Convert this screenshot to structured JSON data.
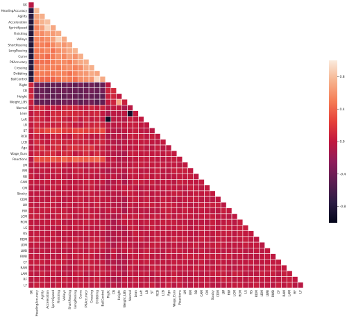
{
  "chart_data": {
    "type": "heatmap",
    "title": "",
    "xlabel": "",
    "ylabel": "",
    "mask": "upper-triangle",
    "labels": [
      "GK",
      "HeadingAccuracy",
      "Agility",
      "Acceleration",
      "SprintSpeed",
      "Finishing",
      "Volleys",
      "ShortPassing",
      "LongPassing",
      "Curve",
      "PKAccuracy",
      "Crossing",
      "Dribbling",
      "BallControl",
      "Right",
      "CB",
      "Height",
      "Weight_LBS",
      "Normal",
      "Lean",
      "Left",
      "LB",
      "ST",
      "RCB",
      "LCB",
      "Age",
      "Wage_Euro",
      "Reactions",
      "LM",
      "RM",
      "RB",
      "CAM",
      "CM",
      "Stocky",
      "CDM",
      "LW",
      "RW",
      "LCM",
      "RCM",
      "LS",
      "RS",
      "RDM",
      "LDM",
      "LWB",
      "RWB",
      "CF",
      "RAM",
      "LAM",
      "RF",
      "LF"
    ],
    "colorbar": {
      "vmin": -1.0,
      "vmax": 1.0,
      "ticks": [
        -0.8,
        -0.4,
        0.0,
        0.4,
        0.8
      ],
      "tick_labels": [
        "-0.8",
        "-0.4",
        "0.0",
        "0.4",
        "0.8"
      ],
      "colormap": "rocket"
    },
    "notable_cells": [
      {
        "row": "Lean",
        "col": "Normal",
        "value": -0.9
      },
      {
        "row": "Left",
        "col": "Right",
        "value": -0.95
      },
      {
        "row": "Weight_LBS",
        "col": "Height",
        "value": 0.7
      },
      {
        "row": "Volleys",
        "col": "Finishing",
        "value": 0.9
      },
      {
        "row": "BallControl",
        "col": "Dribbling",
        "value": 0.92
      },
      {
        "row": "Agility",
        "col": "GK",
        "value": -0.75
      },
      {
        "row": "Acceleration",
        "col": "Agility",
        "value": 0.75
      },
      {
        "row": "SprintSpeed",
        "col": "Acceleration",
        "value": 0.9
      }
    ]
  }
}
